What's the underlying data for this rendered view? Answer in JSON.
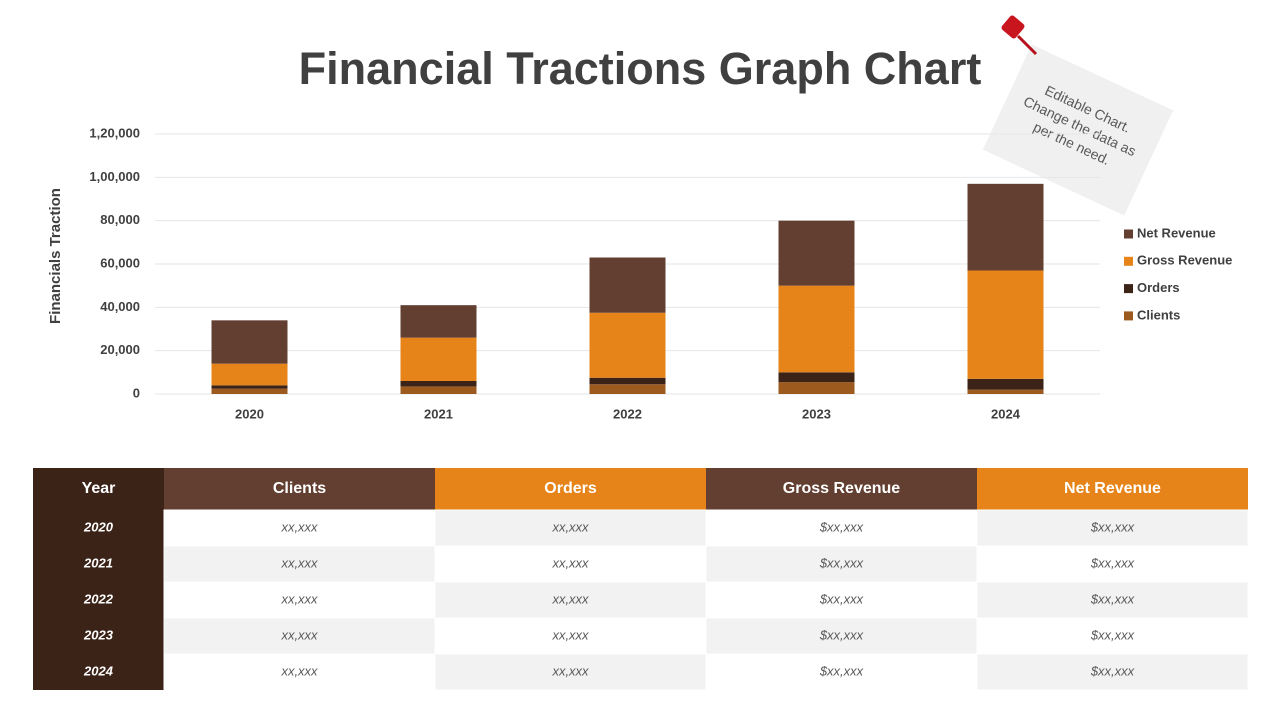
{
  "chart_data": {
    "type": "bar",
    "stacked": true,
    "title": "Financial Tractions Graph Chart",
    "y_label": "Financials Traction",
    "categories": [
      "2020",
      "2021",
      "2022",
      "2023",
      "2024"
    ],
    "series": [
      {
        "name": "Clients",
        "color": "#9c5a1e",
        "values": [
          2500,
          3500,
          4500,
          5500,
          2000
        ]
      },
      {
        "name": "Orders",
        "color": "#3b2318",
        "values": [
          1500,
          2500,
          3000,
          4500,
          5000
        ]
      },
      {
        "name": "Gross Revenue",
        "color": "#e6841a",
        "values": [
          10000,
          20000,
          30000,
          40000,
          50000
        ]
      },
      {
        "name": "Net Revenue",
        "color": "#633f32",
        "values": [
          20000,
          15000,
          25500,
          30000,
          40000
        ]
      }
    ],
    "ylim": [
      0,
      120000
    ],
    "yticks": [
      0,
      {
        "value": 20000,
        "label": "20,000"
      },
      {
        "value": 40000,
        "label": "40,000"
      },
      {
        "value": 60000,
        "label": "60,000"
      },
      {
        "value": 80000,
        "label": "80,000"
      },
      {
        "value": 100000,
        "label": "1,00,000"
      },
      {
        "value": 120000,
        "label": "1,20,000"
      }
    ],
    "grid": true,
    "legend": "right"
  },
  "note": {
    "lines": [
      "Editable Chart.",
      "Change the data as",
      "per the need."
    ]
  },
  "table": {
    "header": [
      "Year",
      "Clients",
      "Orders",
      "Gross Revenue",
      "Net Revenue"
    ],
    "header_colors": [
      "#3b2318",
      "#633f32",
      "#e6841a",
      "#633f32",
      "#e6841a"
    ],
    "rows": [
      [
        "2020",
        "xx,xxx",
        "xx,xxx",
        "$xx,xxx",
        "$xx,xxx"
      ],
      [
        "2021",
        "xx,xxx",
        "xx,xxx",
        "$xx,xxx",
        "$xx,xxx"
      ],
      [
        "2022",
        "xx,xxx",
        "xx,xxx",
        "$xx,xxx",
        "$xx,xxx"
      ],
      [
        "2023",
        "xx,xxx",
        "xx,xxx",
        "$xx,xxx",
        "$xx,xxx"
      ],
      [
        "2024",
        "xx,xxx",
        "xx,xxx",
        "$xx,xxx",
        "$xx,xxx"
      ]
    ]
  }
}
